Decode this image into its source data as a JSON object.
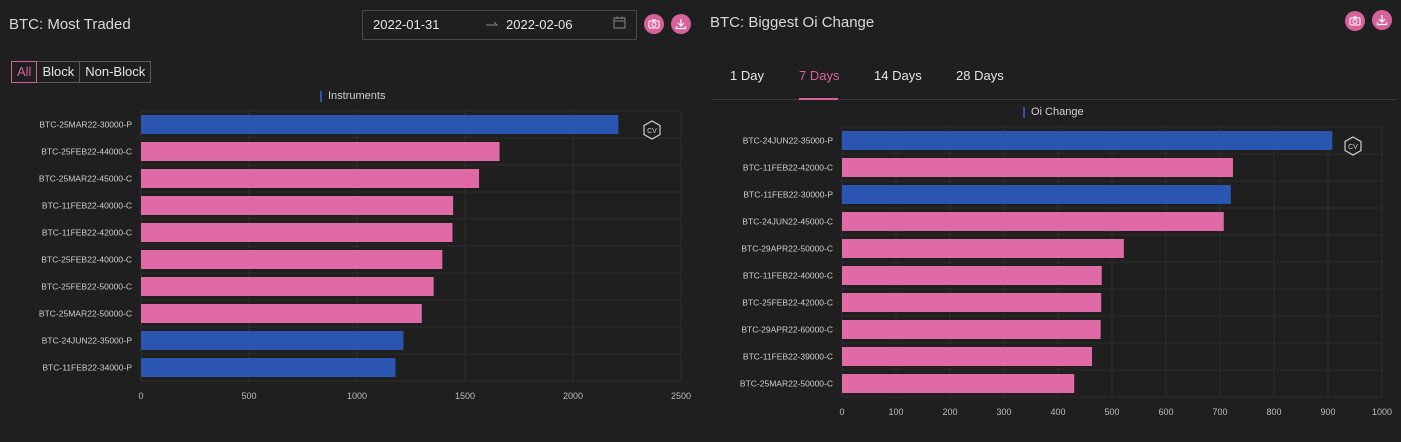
{
  "left": {
    "title": "BTC: Most Traded",
    "date_start": "2022-01-31",
    "date_end": "2022-02-06",
    "filters": [
      "All",
      "Block",
      "Non-Block"
    ],
    "active_filter": "All",
    "legend": "Instruments",
    "badge": "CV"
  },
  "right": {
    "title": "BTC: Biggest Oi Change",
    "tabs": [
      "1 Day",
      "7 Days",
      "14 Days",
      "28 Days"
    ],
    "active_tab": "7 Days",
    "legend": "Oi Change",
    "badge": "CV"
  },
  "colors": {
    "put": "#2a55b0",
    "call": "#df6aa6",
    "accent": "#d6629a"
  },
  "chart_data": [
    {
      "type": "bar",
      "orientation": "horizontal",
      "title": "",
      "legend": [
        "Instruments"
      ],
      "categories": [
        "BTC-25MAR22-30000-P",
        "BTC-25FEB22-44000-C",
        "BTC-25MAR22-45000-C",
        "BTC-11FEB22-40000-C",
        "BTC-11FEB22-42000-C",
        "BTC-25FEB22-40000-C",
        "BTC-25FEB22-50000-C",
        "BTC-25MAR22-50000-C",
        "BTC-24JUN22-35000-P",
        "BTC-11FEB22-34000-P"
      ],
      "values": [
        2210,
        1660,
        1565,
        1445,
        1442,
        1395,
        1355,
        1300,
        1215,
        1178
      ],
      "xlim": [
        0,
        2500
      ],
      "xticks": [
        0,
        500,
        1000,
        1500,
        2000,
        2500
      ],
      "grid": true
    },
    {
      "type": "bar",
      "orientation": "horizontal",
      "title": "",
      "legend": [
        "Oi Change"
      ],
      "categories": [
        "BTC-24JUN22-35000-P",
        "BTC-11FEB22-42000-C",
        "BTC-11FEB22-30000-P",
        "BTC-24JUN22-45000-C",
        "BTC-29APR22-50000-C",
        "BTC-11FEB22-40000-C",
        "BTC-25FEB22-42000-C",
        "BTC-29APR22-60000-C",
        "BTC-11FEB22-39000-C",
        "BTC-25MAR22-50000-C"
      ],
      "values": [
        908,
        724,
        720,
        707,
        522,
        481,
        480,
        479,
        463,
        430
      ],
      "xlim": [
        0,
        1000
      ],
      "xticks": [
        0,
        100,
        200,
        300,
        400,
        500,
        600,
        700,
        800,
        900,
        1000
      ],
      "grid": true
    }
  ]
}
